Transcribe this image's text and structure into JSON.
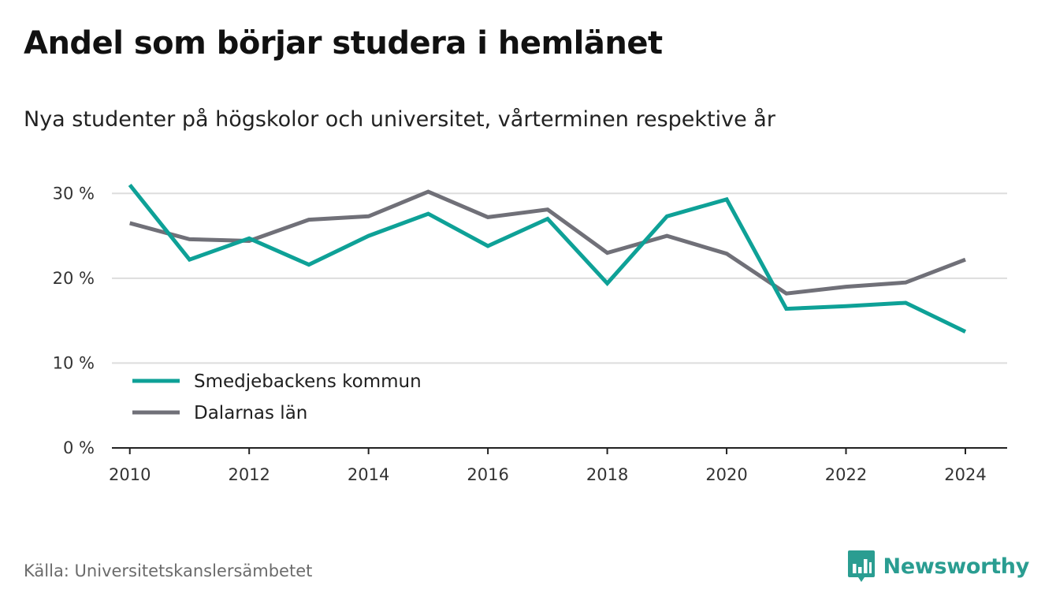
{
  "title": "Andel som börjar studera i hemlänet",
  "subtitle": "Nya studenter på högskolor och universitet, vårterminen respektive år",
  "source": "Källa: Universitetskanslersämbetet",
  "brand": {
    "name": "Newsworthy",
    "color": "#2a9d91",
    "icon": "newsworthy-bar-chart-icon"
  },
  "colors": {
    "series_1": "#0ea197",
    "series_2": "#707078",
    "grid": "#dddddd",
    "axis": "#222222"
  },
  "chart_data": {
    "type": "line",
    "title": "",
    "xlabel": "",
    "ylabel": "",
    "x": [
      2010,
      2011,
      2012,
      2013,
      2014,
      2015,
      2016,
      2017,
      2018,
      2019,
      2020,
      2021,
      2022,
      2023,
      2024
    ],
    "x_tick_labels": [
      "2010",
      "2012",
      "2014",
      "2016",
      "2018",
      "2020",
      "2022",
      "2024"
    ],
    "y_tick_labels": [
      "0 %",
      "10 %",
      "20 %",
      "30 %"
    ],
    "y_ticks": [
      0,
      10,
      20,
      30
    ],
    "ylim": [
      0,
      33
    ],
    "xlim": [
      2009.7,
      2024.7
    ],
    "grid": true,
    "legend_position": "bottom-left",
    "series": [
      {
        "name": "Smedjebackens kommun",
        "color": "#0ea197",
        "values": [
          31.0,
          22.2,
          24.7,
          21.6,
          25.0,
          27.6,
          23.8,
          27.0,
          19.4,
          27.3,
          29.3,
          16.4,
          16.7,
          17.1,
          13.7
        ]
      },
      {
        "name": "Dalarnas län",
        "color": "#707078",
        "values": [
          26.5,
          24.6,
          24.4,
          26.9,
          27.3,
          30.2,
          27.2,
          28.1,
          23.0,
          25.0,
          22.9,
          18.2,
          19.0,
          19.5,
          22.2
        ]
      }
    ]
  }
}
